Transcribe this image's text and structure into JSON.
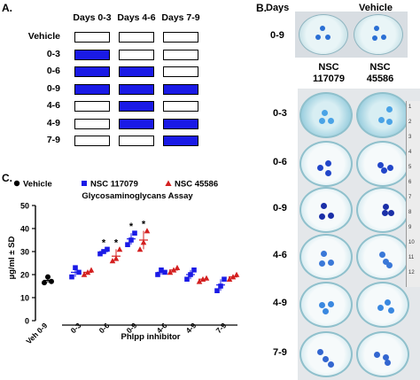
{
  "panels": {
    "a": "A.",
    "b": "B.",
    "c": "C."
  },
  "schedule": {
    "columns": [
      "Days 0-3",
      "Days 4-6",
      "Days 7-9"
    ],
    "rows": [
      {
        "label": "Vehicle",
        "filled": [
          false,
          false,
          false
        ]
      },
      {
        "label": "0-3",
        "filled": [
          true,
          false,
          false
        ]
      },
      {
        "label": "0-6",
        "filled": [
          true,
          true,
          false
        ]
      },
      {
        "label": "0-9",
        "filled": [
          true,
          true,
          true
        ]
      },
      {
        "label": "4-6",
        "filled": [
          false,
          true,
          false
        ]
      },
      {
        "label": "4-9",
        "filled": [
          false,
          true,
          true
        ]
      },
      {
        "label": "7-9",
        "filled": [
          false,
          false,
          true
        ]
      }
    ],
    "filled_color": "#1a1ae6"
  },
  "photo": {
    "days_label": "Days",
    "vehicle_label": "Vehicle",
    "vehicle_row_label": "0-9",
    "col1_label_line1": "NSC",
    "col1_label_line2": "117079",
    "col2_label_line1": "NSC",
    "col2_label_line2": "45586",
    "row_labels": [
      "0-3",
      "0-6",
      "0-9",
      "4-6",
      "4-9",
      "7-9"
    ],
    "ruler_numbers": [
      "1",
      "2",
      "3",
      "4",
      "5",
      "6",
      "7",
      "8",
      "9",
      "10",
      "11",
      "12"
    ]
  },
  "chart_data": {
    "type": "scatter",
    "title": "Glycosaminoglycans Assay",
    "ylabel": "µg/ml ± SD",
    "xlabel": "Phlpp inhibitor",
    "ylim": [
      0,
      50
    ],
    "yticks": [
      "0",
      "10",
      "20",
      "30",
      "40",
      "50"
    ],
    "categories": [
      "Veh 0-9",
      "0-3",
      "0-6",
      "0-9",
      "4-6",
      "4-9",
      "7-9"
    ],
    "legend": [
      "Vehicle",
      "NSC 117079",
      "NSC 45586"
    ],
    "significance_marker": "*",
    "series": [
      {
        "name": "Vehicle",
        "color": "#000000",
        "marker": "circle",
        "points": [
          {
            "category": "Veh 0-9",
            "values": [
              16.5,
              19,
              17
            ],
            "mean": 17.5
          }
        ]
      },
      {
        "name": "NSC 117079",
        "color": "#1a1ae6",
        "marker": "square",
        "points": [
          {
            "category": "0-3",
            "values": [
              19,
              23,
              21
            ],
            "mean": 21
          },
          {
            "category": "0-6",
            "values": [
              29,
              30,
              31
            ],
            "mean": 30,
            "significant": true
          },
          {
            "category": "0-9",
            "values": [
              33,
              35,
              38
            ],
            "mean": 35.5,
            "significant": true
          },
          {
            "category": "4-6",
            "values": [
              20,
              22,
              21
            ],
            "mean": 21
          },
          {
            "category": "4-9",
            "values": [
              18,
              20,
              22
            ],
            "mean": 20
          },
          {
            "category": "7-9",
            "values": [
              13,
              15,
              18
            ],
            "mean": 15.5
          }
        ]
      },
      {
        "name": "NSC 45586",
        "color": "#d42020",
        "marker": "triangle",
        "points": [
          {
            "category": "0-3",
            "values": [
              20,
              21,
              22
            ],
            "mean": 21
          },
          {
            "category": "0-6",
            "values": [
              26,
              27,
              31
            ],
            "mean": 28,
            "significant": true
          },
          {
            "category": "0-9",
            "values": [
              31,
              34,
              39
            ],
            "mean": 35,
            "significant": true
          },
          {
            "category": "4-6",
            "values": [
              21,
              22,
              23
            ],
            "mean": 22
          },
          {
            "category": "4-9",
            "values": [
              17,
              18,
              18.5
            ],
            "mean": 18
          },
          {
            "category": "7-9",
            "values": [
              18,
              19,
              20
            ],
            "mean": 19
          }
        ]
      }
    ]
  }
}
